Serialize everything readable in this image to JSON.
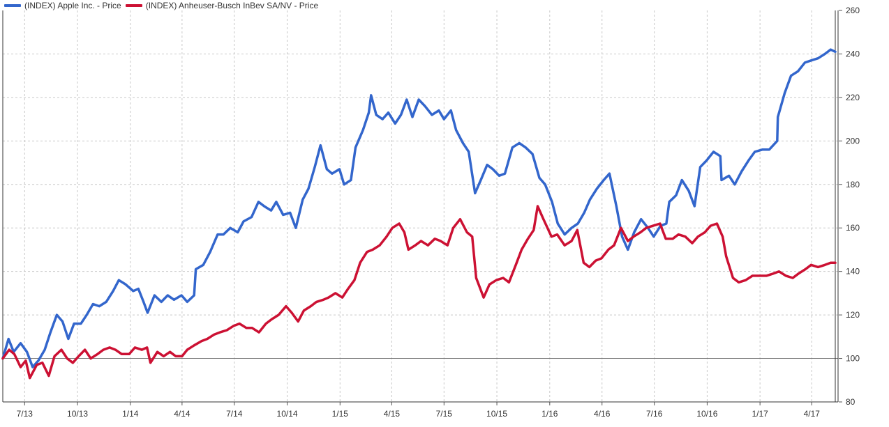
{
  "chart_data": {
    "type": "line",
    "title": "",
    "xlabel": "",
    "ylabel": "",
    "ylim": [
      80,
      260
    ],
    "yticks": [
      80,
      100,
      120,
      140,
      160,
      180,
      200,
      220,
      240,
      260
    ],
    "reference_line": 100,
    "grid": true,
    "legend": "top-left",
    "x_start": "2013-05-24",
    "x_end": "2017-05-12",
    "xticks": [
      {
        "date": "2013-07-01",
        "label": "7/13"
      },
      {
        "date": "2013-10-01",
        "label": "10/13"
      },
      {
        "date": "2014-01-01",
        "label": "1/14"
      },
      {
        "date": "2014-04-01",
        "label": "4/14"
      },
      {
        "date": "2014-07-01",
        "label": "7/14"
      },
      {
        "date": "2014-10-01",
        "label": "10/14"
      },
      {
        "date": "2015-01-01",
        "label": "1/15"
      },
      {
        "date": "2015-04-01",
        "label": "4/15"
      },
      {
        "date": "2015-07-01",
        "label": "7/15"
      },
      {
        "date": "2015-10-01",
        "label": "10/15"
      },
      {
        "date": "2016-01-01",
        "label": "1/16"
      },
      {
        "date": "2016-04-01",
        "label": "4/16"
      },
      {
        "date": "2016-07-01",
        "label": "7/16"
      },
      {
        "date": "2016-10-01",
        "label": "10/16"
      },
      {
        "date": "2017-01-01",
        "label": "1/17"
      },
      {
        "date": "2017-04-01",
        "label": "4/17"
      }
    ],
    "series": [
      {
        "name": "(INDEX) Apple Inc. - Price",
        "color": "#3366cc",
        "points": [
          [
            "2013-05-24",
            100
          ],
          [
            "2013-06-03",
            109
          ],
          [
            "2013-06-12",
            103
          ],
          [
            "2013-06-24",
            107
          ],
          [
            "2013-07-05",
            103
          ],
          [
            "2013-07-15",
            96
          ],
          [
            "2013-07-25",
            99
          ],
          [
            "2013-08-05",
            104
          ],
          [
            "2013-08-15",
            112
          ],
          [
            "2013-08-26",
            120
          ],
          [
            "2013-09-05",
            117
          ],
          [
            "2013-09-15",
            109
          ],
          [
            "2013-09-25",
            116
          ],
          [
            "2013-10-07",
            116
          ],
          [
            "2013-10-17",
            120
          ],
          [
            "2013-10-28",
            125
          ],
          [
            "2013-11-08",
            124
          ],
          [
            "2013-11-20",
            126
          ],
          [
            "2013-12-02",
            131
          ],
          [
            "2013-12-12",
            136
          ],
          [
            "2013-12-24",
            134
          ],
          [
            "2014-01-06",
            131
          ],
          [
            "2014-01-15",
            132
          ],
          [
            "2014-01-24",
            126
          ],
          [
            "2014-01-31",
            121
          ],
          [
            "2014-02-12",
            129
          ],
          [
            "2014-02-24",
            126
          ],
          [
            "2014-03-07",
            129
          ],
          [
            "2014-03-18",
            127
          ],
          [
            "2014-03-31",
            129
          ],
          [
            "2014-04-10",
            126
          ],
          [
            "2014-04-22",
            129
          ],
          [
            "2014-04-25",
            141
          ],
          [
            "2014-05-08",
            143
          ],
          [
            "2014-05-20",
            149
          ],
          [
            "2014-06-02",
            157
          ],
          [
            "2014-06-12",
            157
          ],
          [
            "2014-06-24",
            160
          ],
          [
            "2014-07-07",
            158
          ],
          [
            "2014-07-17",
            163
          ],
          [
            "2014-07-31",
            165
          ],
          [
            "2014-08-12",
            172
          ],
          [
            "2014-08-22",
            170
          ],
          [
            "2014-09-03",
            168
          ],
          [
            "2014-09-12",
            172
          ],
          [
            "2014-09-24",
            166
          ],
          [
            "2014-10-06",
            167
          ],
          [
            "2014-10-16",
            160
          ],
          [
            "2014-10-28",
            173
          ],
          [
            "2014-11-07",
            178
          ],
          [
            "2014-11-18",
            188
          ],
          [
            "2014-11-28",
            198
          ],
          [
            "2014-12-09",
            187
          ],
          [
            "2014-12-18",
            185
          ],
          [
            "2014-12-31",
            187
          ],
          [
            "2015-01-08",
            180
          ],
          [
            "2015-01-20",
            182
          ],
          [
            "2015-01-28",
            197
          ],
          [
            "2015-02-10",
            205
          ],
          [
            "2015-02-20",
            213
          ],
          [
            "2015-02-24",
            221
          ],
          [
            "2015-03-05",
            212
          ],
          [
            "2015-03-16",
            210
          ],
          [
            "2015-03-26",
            213
          ],
          [
            "2015-04-07",
            208
          ],
          [
            "2015-04-17",
            212
          ],
          [
            "2015-04-27",
            219
          ],
          [
            "2015-05-07",
            211
          ],
          [
            "2015-05-18",
            219
          ],
          [
            "2015-05-29",
            216
          ],
          [
            "2015-06-10",
            212
          ],
          [
            "2015-06-22",
            214
          ],
          [
            "2015-07-01",
            210
          ],
          [
            "2015-07-13",
            214
          ],
          [
            "2015-07-22",
            205
          ],
          [
            "2015-08-03",
            199
          ],
          [
            "2015-08-13",
            195
          ],
          [
            "2015-08-24",
            176
          ],
          [
            "2015-09-03",
            182
          ],
          [
            "2015-09-14",
            189
          ],
          [
            "2015-09-24",
            187
          ],
          [
            "2015-10-05",
            184
          ],
          [
            "2015-10-15",
            185
          ],
          [
            "2015-10-28",
            197
          ],
          [
            "2015-11-09",
            199
          ],
          [
            "2015-11-20",
            197
          ],
          [
            "2015-12-02",
            194
          ],
          [
            "2015-12-14",
            183
          ],
          [
            "2015-12-24",
            180
          ],
          [
            "2016-01-05",
            172
          ],
          [
            "2016-01-15",
            162
          ],
          [
            "2016-01-27",
            157
          ],
          [
            "2016-02-08",
            160
          ],
          [
            "2016-02-19",
            162
          ],
          [
            "2016-03-01",
            167
          ],
          [
            "2016-03-11",
            173
          ],
          [
            "2016-03-23",
            178
          ],
          [
            "2016-04-04",
            182
          ],
          [
            "2016-04-14",
            185
          ],
          [
            "2016-04-26",
            170
          ],
          [
            "2016-05-06",
            156
          ],
          [
            "2016-05-16",
            150
          ],
          [
            "2016-05-27",
            158
          ],
          [
            "2016-06-08",
            164
          ],
          [
            "2016-06-20",
            160
          ],
          [
            "2016-06-30",
            156
          ],
          [
            "2016-07-12",
            161
          ],
          [
            "2016-07-22",
            162
          ],
          [
            "2016-07-27",
            172
          ],
          [
            "2016-08-08",
            175
          ],
          [
            "2016-08-18",
            182
          ],
          [
            "2016-08-30",
            177
          ],
          [
            "2016-09-09",
            170
          ],
          [
            "2016-09-19",
            188
          ],
          [
            "2016-09-30",
            191
          ],
          [
            "2016-10-12",
            195
          ],
          [
            "2016-10-24",
            193
          ],
          [
            "2016-10-26",
            182
          ],
          [
            "2016-11-08",
            184
          ],
          [
            "2016-11-18",
            180
          ],
          [
            "2016-11-30",
            186
          ],
          [
            "2016-12-12",
            191
          ],
          [
            "2016-12-23",
            195
          ],
          [
            "2017-01-05",
            196
          ],
          [
            "2017-01-17",
            196
          ],
          [
            "2017-01-31",
            200
          ],
          [
            "2017-02-01",
            211
          ],
          [
            "2017-02-13",
            222
          ],
          [
            "2017-02-24",
            230
          ],
          [
            "2017-03-08",
            232
          ],
          [
            "2017-03-20",
            236
          ],
          [
            "2017-03-31",
            237
          ],
          [
            "2017-04-12",
            238
          ],
          [
            "2017-04-24",
            240
          ],
          [
            "2017-05-04",
            242
          ],
          [
            "2017-05-12",
            241
          ]
        ]
      },
      {
        "name": "(INDEX) Anheuser-Busch InBev SA/NV - Price",
        "color": "#cc1133",
        "points": [
          [
            "2013-05-24",
            100
          ],
          [
            "2013-06-04",
            104
          ],
          [
            "2013-06-13",
            102
          ],
          [
            "2013-06-24",
            96
          ],
          [
            "2013-07-03",
            99
          ],
          [
            "2013-07-10",
            91
          ],
          [
            "2013-07-22",
            97
          ],
          [
            "2013-08-01",
            98
          ],
          [
            "2013-08-12",
            92
          ],
          [
            "2013-08-22",
            101
          ],
          [
            "2013-09-03",
            104
          ],
          [
            "2013-09-13",
            100
          ],
          [
            "2013-09-23",
            98
          ],
          [
            "2013-10-03",
            101
          ],
          [
            "2013-10-14",
            104
          ],
          [
            "2013-10-24",
            100
          ],
          [
            "2013-11-05",
            102
          ],
          [
            "2013-11-15",
            104
          ],
          [
            "2013-11-26",
            105
          ],
          [
            "2013-12-06",
            104
          ],
          [
            "2013-12-17",
            102
          ],
          [
            "2013-12-30",
            102
          ],
          [
            "2014-01-09",
            105
          ],
          [
            "2014-01-21",
            104
          ],
          [
            "2014-01-30",
            105
          ],
          [
            "2014-02-05",
            98
          ],
          [
            "2014-02-17",
            103
          ],
          [
            "2014-02-28",
            101
          ],
          [
            "2014-03-11",
            103
          ],
          [
            "2014-03-21",
            101
          ],
          [
            "2014-04-01",
            101
          ],
          [
            "2014-04-10",
            104
          ],
          [
            "2014-04-22",
            106
          ],
          [
            "2014-05-05",
            108
          ],
          [
            "2014-05-15",
            109
          ],
          [
            "2014-05-27",
            111
          ],
          [
            "2014-06-06",
            112
          ],
          [
            "2014-06-18",
            113
          ],
          [
            "2014-06-30",
            115
          ],
          [
            "2014-07-10",
            116
          ],
          [
            "2014-07-22",
            114
          ],
          [
            "2014-08-01",
            114
          ],
          [
            "2014-08-13",
            112
          ],
          [
            "2014-08-25",
            116
          ],
          [
            "2014-09-04",
            118
          ],
          [
            "2014-09-16",
            120
          ],
          [
            "2014-09-29",
            124
          ],
          [
            "2014-10-09",
            121
          ],
          [
            "2014-10-20",
            117
          ],
          [
            "2014-10-30",
            122
          ],
          [
            "2014-11-11",
            124
          ],
          [
            "2014-11-21",
            126
          ],
          [
            "2014-12-03",
            127
          ],
          [
            "2014-12-12",
            128
          ],
          [
            "2014-12-24",
            130
          ],
          [
            "2015-01-05",
            128
          ],
          [
            "2015-01-15",
            132
          ],
          [
            "2015-01-26",
            136
          ],
          [
            "2015-02-05",
            144
          ],
          [
            "2015-02-17",
            149
          ],
          [
            "2015-02-27",
            150
          ],
          [
            "2015-03-11",
            152
          ],
          [
            "2015-03-23",
            156
          ],
          [
            "2015-04-02",
            160
          ],
          [
            "2015-04-14",
            162
          ],
          [
            "2015-04-23",
            158
          ],
          [
            "2015-04-30",
            150
          ],
          [
            "2015-05-12",
            152
          ],
          [
            "2015-05-22",
            154
          ],
          [
            "2015-06-03",
            152
          ],
          [
            "2015-06-15",
            155
          ],
          [
            "2015-06-25",
            154
          ],
          [
            "2015-07-07",
            152
          ],
          [
            "2015-07-17",
            160
          ],
          [
            "2015-07-29",
            164
          ],
          [
            "2015-08-10",
            158
          ],
          [
            "2015-08-19",
            156
          ],
          [
            "2015-08-26",
            137
          ],
          [
            "2015-09-08",
            128
          ],
          [
            "2015-09-18",
            134
          ],
          [
            "2015-09-30",
            136
          ],
          [
            "2015-10-12",
            137
          ],
          [
            "2015-10-22",
            135
          ],
          [
            "2015-11-03",
            143
          ],
          [
            "2015-11-13",
            150
          ],
          [
            "2015-11-24",
            155
          ],
          [
            "2015-12-04",
            159
          ],
          [
            "2015-12-11",
            170
          ],
          [
            "2015-12-21",
            164
          ],
          [
            "2016-01-04",
            156
          ],
          [
            "2016-01-14",
            157
          ],
          [
            "2016-01-27",
            152
          ],
          [
            "2016-02-08",
            154
          ],
          [
            "2016-02-18",
            159
          ],
          [
            "2016-02-29",
            144
          ],
          [
            "2016-03-10",
            142
          ],
          [
            "2016-03-21",
            145
          ],
          [
            "2016-03-31",
            146
          ],
          [
            "2016-04-12",
            150
          ],
          [
            "2016-04-22",
            152
          ],
          [
            "2016-05-04",
            160
          ],
          [
            "2016-05-16",
            154
          ],
          [
            "2016-05-26",
            156
          ],
          [
            "2016-06-07",
            158
          ],
          [
            "2016-06-17",
            160
          ],
          [
            "2016-06-29",
            161
          ],
          [
            "2016-07-11",
            162
          ],
          [
            "2016-07-21",
            155
          ],
          [
            "2016-08-02",
            155
          ],
          [
            "2016-08-12",
            157
          ],
          [
            "2016-08-24",
            156
          ],
          [
            "2016-09-05",
            153
          ],
          [
            "2016-09-15",
            156
          ],
          [
            "2016-09-27",
            158
          ],
          [
            "2016-10-07",
            161
          ],
          [
            "2016-10-18",
            162
          ],
          [
            "2016-10-28",
            156
          ],
          [
            "2016-11-03",
            147
          ],
          [
            "2016-11-15",
            137
          ],
          [
            "2016-11-25",
            135
          ],
          [
            "2016-12-07",
            136
          ],
          [
            "2016-12-19",
            138
          ],
          [
            "2016-12-30",
            138
          ],
          [
            "2017-01-12",
            138
          ],
          [
            "2017-01-24",
            139
          ],
          [
            "2017-02-03",
            140
          ],
          [
            "2017-02-15",
            138
          ],
          [
            "2017-02-27",
            137
          ],
          [
            "2017-03-09",
            139
          ],
          [
            "2017-03-21",
            141
          ],
          [
            "2017-03-31",
            143
          ],
          [
            "2017-04-12",
            142
          ],
          [
            "2017-04-24",
            143
          ],
          [
            "2017-05-04",
            144
          ],
          [
            "2017-05-12",
            144
          ]
        ]
      }
    ]
  }
}
